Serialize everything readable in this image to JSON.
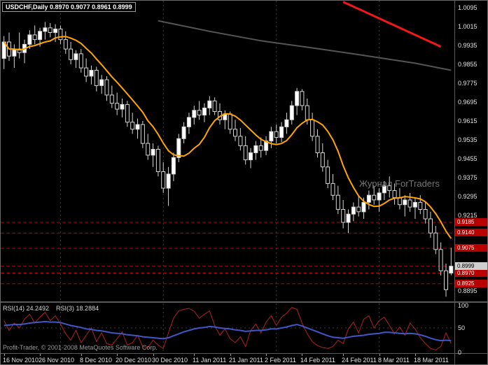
{
  "window": {
    "title": "USDCHF,Daily 0.8970 0.9077 0.8961 0.8999",
    "watermark": "Журнал ForTraders",
    "copyright": "Profit-Trader, © 2001-2008 MetaQuotes Software Corp."
  },
  "colors": {
    "background": "#000000",
    "grid": "#3e3e3e",
    "text": "#e2e2e2",
    "bull": "#ffffff",
    "bear": "#000000",
    "candle_border": "#d6d6d6",
    "ma": "#ffa500",
    "level": "#c00000",
    "level_tag_bg": "#b80000",
    "current_tag_bg": "#cfcfcf",
    "rsi_fast": "#b22222",
    "rsi_slow": "#4157c9"
  },
  "price_axis": {
    "range": {
      "max": 1.0125,
      "min": 0.885
    },
    "labels": [
      "1.0095",
      "1.0015",
      "0.9935",
      "0.9855",
      "0.9775",
      "0.9695",
      "0.9615",
      "0.9535",
      "0.9455",
      "0.9375",
      "0.9295",
      "0.9215",
      "0.8895"
    ],
    "red_levels": [
      0.9185,
      0.914,
      0.9075,
      0.897,
      0.8925
    ],
    "current_price": 0.8999
  },
  "time_axis": {
    "tick_indices": [
      0,
      7,
      15,
      22,
      29,
      37,
      44,
      51,
      58,
      66,
      73,
      80
    ],
    "labels": [
      "16 Nov 2010",
      "26 Nov 2010",
      "8 Dec 2010",
      "20 Dec 2010",
      "30 Dec 2010",
      "11 Jan 2011",
      "21 Jan 2011",
      "2 Feb 2011",
      "14 Feb 2011",
      "24 Feb 2011",
      "8 Mar 2011",
      "18 Mar 2011"
    ]
  },
  "chart_data": {
    "type": "candlestick",
    "symbol": "USDCHF",
    "timeframe": "Daily",
    "title": "USDCHF,Daily 0.8970 0.9077 0.8961 0.8999",
    "last_ohlc": {
      "open": 0.897,
      "high": 0.9077,
      "low": 0.8961,
      "close": 0.8999
    },
    "ohlc": [
      [
        0.988,
        0.9975,
        0.9835,
        0.995
      ],
      [
        0.995,
        0.999,
        0.987,
        0.989
      ],
      [
        0.989,
        0.994,
        0.984,
        0.992
      ],
      [
        0.992,
        0.999,
        0.988,
        0.9905
      ],
      [
        0.9905,
        0.996,
        0.986,
        0.994
      ],
      [
        0.994,
        1.0,
        0.992,
        0.998
      ],
      [
        0.998,
        1.002,
        0.994,
        0.996
      ],
      [
        0.996,
        1.001,
        0.993,
        0.9995
      ],
      [
        0.9995,
        1.0035,
        0.996,
        1.001
      ],
      [
        1.001,
        1.003,
        0.997,
        0.999
      ],
      [
        0.999,
        1.0025,
        0.995,
        1.0005
      ],
      [
        1.0005,
        1.002,
        0.994,
        0.996
      ],
      [
        0.996,
        0.9995,
        0.99,
        0.992
      ],
      [
        0.992,
        0.995,
        0.9855,
        0.9875
      ],
      [
        0.9875,
        0.9915,
        0.984,
        0.99
      ],
      [
        0.99,
        0.992,
        0.982,
        0.984
      ],
      [
        0.984,
        0.988,
        0.978,
        0.9805
      ],
      [
        0.9805,
        0.985,
        0.977,
        0.983
      ],
      [
        0.983,
        0.9845,
        0.974,
        0.9765
      ],
      [
        0.9765,
        0.981,
        0.973,
        0.979
      ],
      [
        0.979,
        0.9805,
        0.97,
        0.9725
      ],
      [
        0.9725,
        0.9765,
        0.967,
        0.969
      ],
      [
        0.969,
        0.9735,
        0.964,
        0.9665
      ],
      [
        0.9665,
        0.971,
        0.963,
        0.9685
      ],
      [
        0.9685,
        0.97,
        0.959,
        0.961
      ],
      [
        0.961,
        0.965,
        0.956,
        0.958
      ],
      [
        0.958,
        0.9625,
        0.954,
        0.96
      ],
      [
        0.96,
        0.9615,
        0.95,
        0.952
      ],
      [
        0.952,
        0.956,
        0.945,
        0.947
      ],
      [
        0.947,
        0.952,
        0.942,
        0.9495
      ],
      [
        0.9495,
        0.951,
        0.938,
        0.94
      ],
      [
        0.94,
        0.944,
        0.931,
        0.933
      ],
      [
        0.933,
        0.942,
        0.9255,
        0.939
      ],
      [
        0.939,
        0.948,
        0.936,
        0.946
      ],
      [
        0.946,
        0.956,
        0.944,
        0.954
      ],
      [
        0.954,
        0.961,
        0.952,
        0.959
      ],
      [
        0.959,
        0.965,
        0.956,
        0.963
      ],
      [
        0.963,
        0.968,
        0.96,
        0.966
      ],
      [
        0.966,
        0.97,
        0.962,
        0.964
      ],
      [
        0.964,
        0.969,
        0.961,
        0.967
      ],
      [
        0.967,
        0.972,
        0.964,
        0.97
      ],
      [
        0.97,
        0.9715,
        0.964,
        0.9655
      ],
      [
        0.9655,
        0.969,
        0.96,
        0.962
      ],
      [
        0.962,
        0.966,
        0.958,
        0.9645
      ],
      [
        0.9645,
        0.9655,
        0.956,
        0.958
      ],
      [
        0.958,
        0.962,
        0.953,
        0.955
      ],
      [
        0.955,
        0.9585,
        0.949,
        0.951
      ],
      [
        0.951,
        0.955,
        0.943,
        0.945
      ],
      [
        0.945,
        0.95,
        0.9415,
        0.948
      ],
      [
        0.948,
        0.953,
        0.945,
        0.951
      ],
      [
        0.951,
        0.9545,
        0.946,
        0.949
      ],
      [
        0.949,
        0.955,
        0.947,
        0.953
      ],
      [
        0.953,
        0.959,
        0.95,
        0.957
      ],
      [
        0.957,
        0.96,
        0.952,
        0.9545
      ],
      [
        0.9545,
        0.961,
        0.9525,
        0.959
      ],
      [
        0.959,
        0.965,
        0.956,
        0.962
      ],
      [
        0.962,
        0.97,
        0.96,
        0.968
      ],
      [
        0.968,
        0.9755,
        0.964,
        0.974
      ],
      [
        0.974,
        0.975,
        0.966,
        0.968
      ],
      [
        0.968,
        0.971,
        0.96,
        0.962
      ],
      [
        0.962,
        0.965,
        0.953,
        0.955
      ],
      [
        0.955,
        0.958,
        0.946,
        0.948
      ],
      [
        0.948,
        0.952,
        0.94,
        0.942
      ],
      [
        0.942,
        0.945,
        0.933,
        0.935
      ],
      [
        0.935,
        0.939,
        0.928,
        0.93
      ],
      [
        0.93,
        0.934,
        0.922,
        0.924
      ],
      [
        0.924,
        0.928,
        0.916,
        0.9185
      ],
      [
        0.9185,
        0.924,
        0.914,
        0.922
      ],
      [
        0.922,
        0.927,
        0.919,
        0.925
      ],
      [
        0.925,
        0.93,
        0.921,
        0.923
      ],
      [
        0.923,
        0.929,
        0.92,
        0.927
      ],
      [
        0.927,
        0.932,
        0.924,
        0.93
      ],
      [
        0.93,
        0.934,
        0.926,
        0.928
      ],
      [
        0.928,
        0.933,
        0.923,
        0.931
      ],
      [
        0.931,
        0.936,
        0.928,
        0.934
      ],
      [
        0.934,
        0.938,
        0.929,
        0.932
      ],
      [
        0.932,
        0.935,
        0.926,
        0.929
      ],
      [
        0.929,
        0.933,
        0.924,
        0.926
      ],
      [
        0.926,
        0.93,
        0.921,
        0.928
      ],
      [
        0.928,
        0.931,
        0.923,
        0.925
      ],
      [
        0.925,
        0.929,
        0.92,
        0.927
      ],
      [
        0.927,
        0.93,
        0.922,
        0.924
      ],
      [
        0.924,
        0.927,
        0.918,
        0.92
      ],
      [
        0.92,
        0.923,
        0.912,
        0.914
      ],
      [
        0.914,
        0.917,
        0.905,
        0.907
      ],
      [
        0.907,
        0.91,
        0.896,
        0.898
      ],
      [
        0.898,
        0.901,
        0.887,
        0.89
      ],
      [
        0.897,
        0.9077,
        0.8961,
        0.8999
      ]
    ],
    "separators": [
      11,
      31,
      53,
      73
    ],
    "ma": {
      "period": 9,
      "color": "#ffa500"
    },
    "trend_lines": [
      {
        "name": "red-trend",
        "color": "#f21818",
        "width": 3,
        "points": [
          {
            "i": 66,
            "p": 1.012
          },
          {
            "i": 85,
            "p": 0.993
          }
        ]
      },
      {
        "name": "dark-trend",
        "color": "#555555",
        "width": 2,
        "points": [
          {
            "i": 30,
            "p": 1.004
          },
          {
            "i": 40,
            "p": 0.9995
          },
          {
            "i": 50,
            "p": 0.9955
          },
          {
            "i": 60,
            "p": 0.9925
          },
          {
            "i": 70,
            "p": 0.9893
          },
          {
            "i": 80,
            "p": 0.986
          },
          {
            "i": 87,
            "p": 0.983
          }
        ]
      }
    ],
    "rsi": {
      "label1": "RSI(14) 24.2492",
      "label2": "RSI(3) 18.2884",
      "scale": [
        100,
        50,
        0
      ],
      "fast": [
        65,
        45,
        60,
        50,
        68,
        78,
        60,
        72,
        82,
        65,
        75,
        58,
        38,
        25,
        45,
        20,
        35,
        50,
        22,
        40,
        18,
        15,
        28,
        42,
        15,
        20,
        35,
        12,
        10,
        25,
        15,
        8,
        40,
        70,
        85,
        88,
        90,
        84,
        70,
        78,
        85,
        55,
        35,
        48,
        28,
        20,
        32,
        12,
        45,
        58,
        40,
        62,
        75,
        55,
        72,
        80,
        92,
        88,
        60,
        38,
        22,
        14,
        10,
        8,
        12,
        25,
        18,
        48,
        62,
        40,
        68,
        75,
        50,
        65,
        72,
        55,
        38,
        52,
        35,
        60,
        48,
        30,
        18,
        8,
        5,
        12,
        40,
        18
      ],
      "slow": [
        55,
        56,
        57,
        57,
        58,
        60,
        61,
        62,
        63,
        62,
        62,
        61,
        58,
        55,
        53,
        51,
        48,
        47,
        45,
        44,
        42,
        40,
        39,
        38,
        36,
        35,
        34,
        32,
        31,
        30,
        29,
        28,
        30,
        34,
        38,
        42,
        45,
        48,
        50,
        51,
        53,
        52,
        50,
        49,
        48,
        46,
        45,
        43,
        44,
        45,
        45,
        46,
        48,
        48,
        50,
        52,
        55,
        57,
        54,
        50,
        46,
        42,
        38,
        34,
        31,
        30,
        29,
        31,
        33,
        34,
        35,
        37,
        38,
        39,
        41,
        41,
        40,
        39,
        38,
        39,
        38,
        36,
        33,
        29,
        26,
        24,
        25,
        24
      ]
    }
  }
}
